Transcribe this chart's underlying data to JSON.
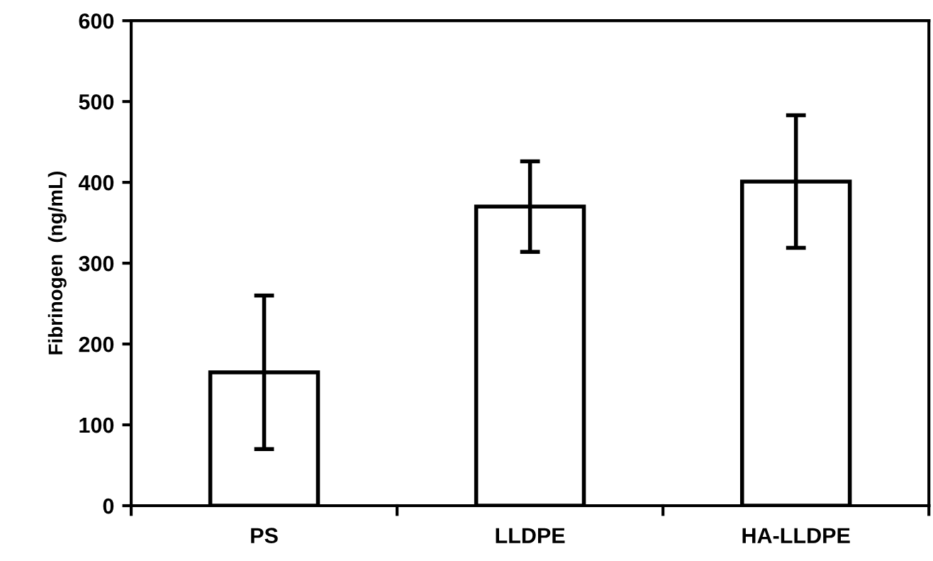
{
  "chart_data": {
    "type": "bar",
    "ylabel": "Fibrinogen  (ng/mL)",
    "categories": [
      "PS",
      "LLDPE",
      "HA-LLDPE"
    ],
    "values": [
      165,
      370,
      401
    ],
    "errors": [
      95,
      56,
      82
    ],
    "color": "#ffffff",
    "ylim": [
      0,
      600
    ],
    "yticks": [
      0,
      100,
      200,
      300,
      400,
      500,
      600
    ],
    "grid": false
  }
}
